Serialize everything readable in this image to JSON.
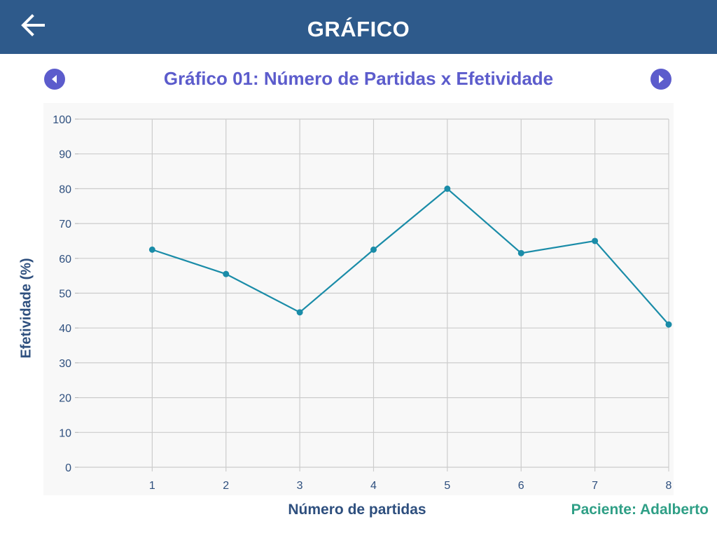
{
  "header": {
    "title": "GRÁFICO",
    "back_icon": "arrow-left-icon"
  },
  "navigation": {
    "prev_icon": "caret-left-icon",
    "next_icon": "caret-right-icon"
  },
  "patient_label": "Paciente: Adalberto",
  "colors": {
    "header_bg": "#2e5a8b",
    "title": "#5c5ccc",
    "line": "#1a8ca8",
    "axis_label": "#2e4f7e",
    "patient": "#2f9f86"
  },
  "chart_data": {
    "type": "line",
    "title": "Gráfico 01: Número de Partidas x Efetividade",
    "xlabel": "Número de partidas",
    "ylabel": "Efetividade (%)",
    "x": [
      1,
      2,
      3,
      4,
      5,
      6,
      7,
      8
    ],
    "series": [
      {
        "values": [
          62.5,
          55.5,
          44.5,
          62.5,
          80,
          61.5,
          65,
          41
        ]
      }
    ],
    "xlim": [
      0,
      8
    ],
    "ylim": [
      0,
      100
    ],
    "yticks": [
      0,
      10,
      20,
      30,
      40,
      50,
      60,
      70,
      80,
      90,
      100
    ],
    "xticks": [
      1,
      2,
      3,
      4,
      5,
      6,
      7,
      8
    ],
    "grid": true,
    "legend": "none"
  }
}
